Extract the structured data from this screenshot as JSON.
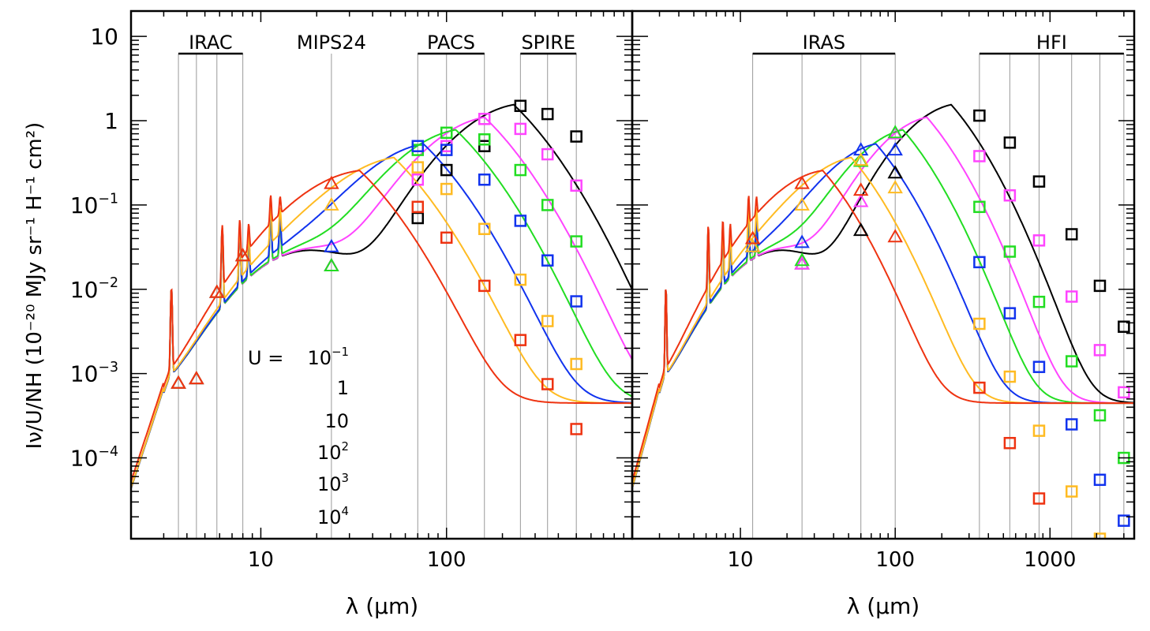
{
  "chart_data": [
    {
      "type": "line",
      "panel": "left",
      "xscale": "log",
      "yscale": "log",
      "xlim": [
        2,
        1000
      ],
      "ylim": [
        1.1e-05,
        20
      ],
      "xlabel": "λ (μm)",
      "ylabel": "Iν/U/NH (10⁻²⁰ MJy sr⁻¹ H⁻¹ cm²)",
      "xtick_labels": [
        {
          "value": 10,
          "label": "10"
        },
        {
          "value": 100,
          "label": "100"
        }
      ],
      "ytick_labels": [
        {
          "value": 10,
          "base": "10",
          "exp": ""
        },
        {
          "value": 1,
          "base": "1",
          "exp": ""
        },
        {
          "value": 0.1,
          "base": "10",
          "exp": "−1"
        },
        {
          "value": 0.01,
          "base": "10",
          "exp": "−2"
        },
        {
          "value": 0.001,
          "base": "10",
          "exp": "−3"
        },
        {
          "value": 0.0001,
          "base": "10",
          "exp": "−4"
        }
      ],
      "bands": [
        {
          "label": "IRAC",
          "range": [
            3.6,
            8.0
          ],
          "lines": [
            3.6,
            4.5,
            5.8,
            8.0
          ]
        },
        {
          "label": "MIPS24",
          "range": null,
          "lines": [
            24
          ]
        },
        {
          "label": "PACS",
          "range": [
            70,
            160
          ],
          "lines": [
            70,
            100,
            160
          ]
        },
        {
          "label": "SPIRE",
          "range": [
            250,
            500
          ],
          "lines": [
            250,
            350,
            500
          ]
        }
      ],
      "legend": {
        "prefix": "U  =  ",
        "entries": [
          {
            "base": "10",
            "exp": "−1",
            "color": "#000000"
          },
          {
            "base": "1",
            "exp": "",
            "color": "#ff44ff"
          },
          {
            "base": "10",
            "exp": "",
            "color": "#22dd22"
          },
          {
            "base": "10",
            "exp": "2",
            "color": "#1133ee"
          },
          {
            "base": "10",
            "exp": "3",
            "color": "#ffbb22"
          },
          {
            "base": "10",
            "exp": "4",
            "color": "#ee3311"
          }
        ]
      },
      "series": [
        {
          "U": "0.1",
          "color": "#000000",
          "triangles": [
            [
              3.6,
              0.00077
            ],
            [
              4.5,
              0.00087
            ],
            [
              5.8,
              0.0092
            ],
            [
              8.0,
              0.025
            ],
            [
              24,
              0.019
            ]
          ],
          "squares": [
            [
              70,
              0.07
            ],
            [
              100,
              0.26
            ],
            [
              160,
              0.5
            ],
            [
              250,
              1.5
            ],
            [
              350,
              1.2
            ],
            [
              500,
              0.65
            ]
          ]
        },
        {
          "U": "1",
          "color": "#ff44ff",
          "triangles": [
            [
              3.6,
              0.00077
            ],
            [
              4.5,
              0.00087
            ],
            [
              5.8,
              0.0092
            ],
            [
              8.0,
              0.025
            ],
            [
              24,
              0.019
            ]
          ],
          "squares": [
            [
              70,
              0.2
            ],
            [
              100,
              0.5
            ],
            [
              160,
              1.05
            ],
            [
              250,
              0.8
            ],
            [
              350,
              0.4
            ],
            [
              500,
              0.17
            ]
          ]
        },
        {
          "U": "10",
          "color": "#22dd22",
          "triangles": [
            [
              3.6,
              0.00077
            ],
            [
              4.5,
              0.00087
            ],
            [
              5.8,
              0.0092
            ],
            [
              8.0,
              0.025
            ],
            [
              24,
              0.019
            ]
          ],
          "squares": [
            [
              70,
              0.45
            ],
            [
              100,
              0.72
            ],
            [
              160,
              0.6
            ],
            [
              250,
              0.26
            ],
            [
              350,
              0.1
            ],
            [
              500,
              0.037
            ]
          ]
        },
        {
          "U": "100",
          "color": "#1133ee",
          "triangles": [
            [
              3.6,
              0.00077
            ],
            [
              4.5,
              0.00087
            ],
            [
              5.8,
              0.0092
            ],
            [
              8.0,
              0.025
            ],
            [
              24,
              0.032
            ]
          ],
          "squares": [
            [
              70,
              0.5
            ],
            [
              100,
              0.45
            ],
            [
              160,
              0.2
            ],
            [
              250,
              0.065
            ],
            [
              350,
              0.022
            ],
            [
              500,
              0.0072
            ]
          ]
        },
        {
          "U": "1000",
          "color": "#ffbb22",
          "triangles": [
            [
              3.6,
              0.00077
            ],
            [
              4.5,
              0.00087
            ],
            [
              5.8,
              0.0092
            ],
            [
              8.0,
              0.025
            ],
            [
              24,
              0.1
            ]
          ],
          "squares": [
            [
              70,
              0.28
            ],
            [
              100,
              0.155
            ],
            [
              160,
              0.052
            ],
            [
              250,
              0.013
            ],
            [
              350,
              0.0042
            ],
            [
              500,
              0.0013
            ]
          ]
        },
        {
          "U": "10000",
          "color": "#ee3311",
          "triangles": [
            [
              3.6,
              0.00077
            ],
            [
              4.5,
              0.00087
            ],
            [
              5.8,
              0.0092
            ],
            [
              8.0,
              0.025
            ],
            [
              24,
              0.18
            ]
          ],
          "squares": [
            [
              70,
              0.095
            ],
            [
              100,
              0.041
            ],
            [
              160,
              0.011
            ],
            [
              250,
              0.0025
            ],
            [
              350,
              0.00075
            ],
            [
              500,
              0.00022
            ]
          ]
        }
      ]
    },
    {
      "type": "line",
      "panel": "right",
      "xscale": "log",
      "yscale": "log",
      "xlim": [
        2,
        3500
      ],
      "ylim": [
        1.1e-05,
        20
      ],
      "xlabel": "λ (μm)",
      "xtick_labels": [
        {
          "value": 10,
          "label": "10"
        },
        {
          "value": 100,
          "label": "100"
        },
        {
          "value": 1000,
          "label": "1000"
        }
      ],
      "bands": [
        {
          "label": "IRAS",
          "range": [
            12,
            100
          ],
          "lines": [
            12,
            25,
            60,
            100
          ]
        },
        {
          "label": "HFI",
          "range": [
            350,
            3000
          ],
          "lines": [
            350,
            550,
            850,
            1380,
            2100,
            3000
          ]
        }
      ],
      "series": [
        {
          "U": "0.1",
          "color": "#000000",
          "triangles": [
            [
              12,
              0.032
            ],
            [
              25,
              0.02
            ],
            [
              60,
              0.05
            ],
            [
              100,
              0.24
            ]
          ],
          "squares": [
            [
              350,
              1.15
            ],
            [
              550,
              0.55
            ],
            [
              850,
              0.19
            ],
            [
              1380,
              0.045
            ],
            [
              2100,
              0.011
            ],
            [
              3000,
              0.0036
            ]
          ]
        },
        {
          "U": "1",
          "color": "#ff44ff",
          "triangles": [
            [
              12,
              0.032
            ],
            [
              25,
              0.02
            ],
            [
              60,
              0.11
            ],
            [
              100,
              0.7
            ]
          ],
          "squares": [
            [
              350,
              0.38
            ],
            [
              550,
              0.13
            ],
            [
              850,
              0.038
            ],
            [
              1380,
              0.0082
            ],
            [
              2100,
              0.0019
            ],
            [
              3000,
              0.0006
            ]
          ]
        },
        {
          "U": "10",
          "color": "#22dd22",
          "triangles": [
            [
              12,
              0.032
            ],
            [
              25,
              0.022
            ],
            [
              60,
              0.33
            ],
            [
              100,
              0.72
            ]
          ],
          "squares": [
            [
              350,
              0.095
            ],
            [
              550,
              0.028
            ],
            [
              850,
              0.0071
            ],
            [
              1380,
              0.0014
            ],
            [
              2100,
              0.00032
            ],
            [
              3000,
              0.0001
            ]
          ]
        },
        {
          "U": "100",
          "color": "#1133ee",
          "triangles": [
            [
              12,
              0.032
            ],
            [
              25,
              0.036
            ],
            [
              60,
              0.45
            ],
            [
              100,
              0.45
            ]
          ],
          "squares": [
            [
              350,
              0.021
            ],
            [
              550,
              0.0052
            ],
            [
              850,
              0.0012
            ],
            [
              1380,
              0.00025
            ],
            [
              2100,
              5.5e-05
            ],
            [
              3000,
              1.8e-05
            ]
          ]
        },
        {
          "U": "1000",
          "color": "#ffbb22",
          "triangles": [
            [
              12,
              0.032
            ],
            [
              25,
              0.1
            ],
            [
              60,
              0.34
            ],
            [
              100,
              0.16
            ]
          ],
          "squares": [
            [
              350,
              0.0039
            ],
            [
              550,
              0.00092
            ],
            [
              850,
              0.00021
            ],
            [
              1380,
              4e-05
            ],
            [
              2100,
              1.1e-05
            ]
          ]
        },
        {
          "U": "10000",
          "color": "#ee3311",
          "triangles": [
            [
              12,
              0.04
            ],
            [
              25,
              0.18
            ],
            [
              60,
              0.15
            ],
            [
              100,
              0.042
            ]
          ],
          "squares": [
            [
              350,
              0.00068
            ],
            [
              550,
              0.00015
            ],
            [
              850,
              3.3e-05
            ]
          ]
        }
      ]
    }
  ],
  "model": {
    "pah_features": [
      [
        3.3,
        0.0093
      ],
      [
        6.2,
        0.047
      ],
      [
        7.7,
        0.045
      ],
      [
        8.6,
        0.03
      ],
      [
        11.3,
        0.07
      ],
      [
        12.7,
        0.048
      ]
    ],
    "peaks": [
      {
        "U": "0.1",
        "peak_wavelength": 230,
        "peak_value": 1.55
      },
      {
        "U": "1",
        "peak_wavelength": 160,
        "peak_value": 1.1
      },
      {
        "U": "10",
        "peak_wavelength": 112,
        "peak_value": 0.78
      },
      {
        "U": "100",
        "peak_wavelength": 75,
        "peak_value": 0.53
      },
      {
        "U": "1000",
        "peak_wavelength": 52,
        "peak_value": 0.36
      },
      {
        "U": "10000",
        "peak_wavelength": 34,
        "peak_value": 0.24
      }
    ]
  }
}
